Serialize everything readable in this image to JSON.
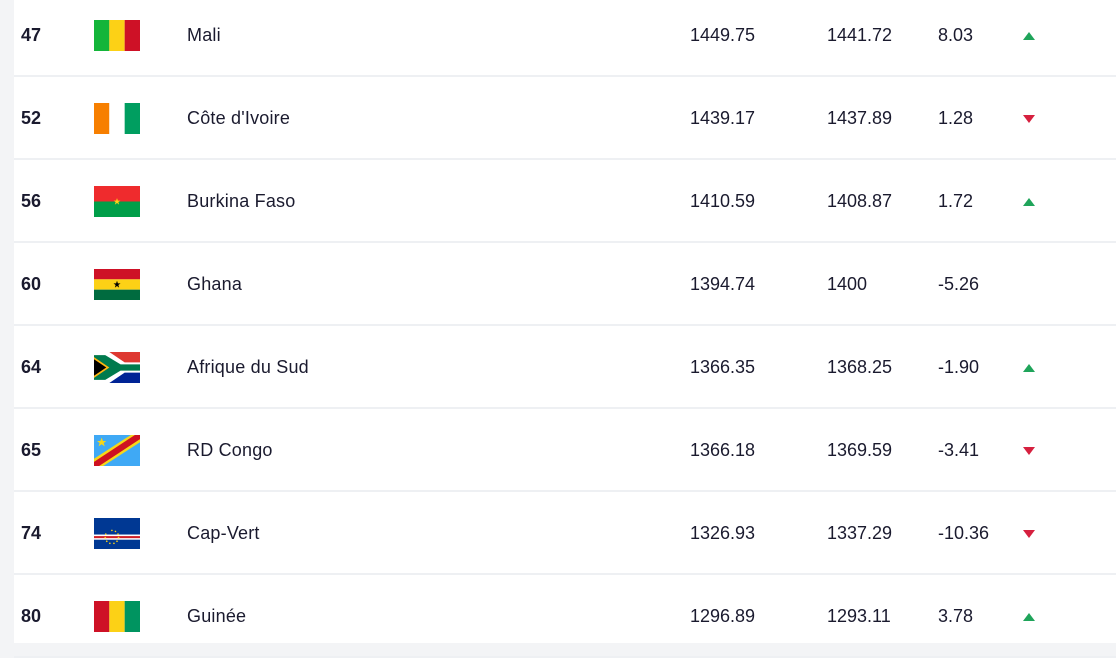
{
  "ranking": {
    "rows": [
      {
        "rank": "47",
        "country": "Mali",
        "flag": "mali-flag",
        "points": "1449.75",
        "previous_points": "1441.72",
        "change": "8.03",
        "trend": "up"
      },
      {
        "rank": "52",
        "country": "Côte d'Ivoire",
        "flag": "cote-divoire-flag",
        "points": "1439.17",
        "previous_points": "1437.89",
        "change": "1.28",
        "trend": "down"
      },
      {
        "rank": "56",
        "country": "Burkina Faso",
        "flag": "burkina-faso-flag",
        "points": "1410.59",
        "previous_points": "1408.87",
        "change": "1.72",
        "trend": "up"
      },
      {
        "rank": "60",
        "country": "Ghana",
        "flag": "ghana-flag",
        "points": "1394.74",
        "previous_points": "1400",
        "change": "-5.26",
        "trend": "none"
      },
      {
        "rank": "64",
        "country": "Afrique du Sud",
        "flag": "south-africa-flag",
        "points": "1366.35",
        "previous_points": "1368.25",
        "change": "-1.90",
        "trend": "up"
      },
      {
        "rank": "65",
        "country": "RD Congo",
        "flag": "dr-congo-flag",
        "points": "1366.18",
        "previous_points": "1369.59",
        "change": "-3.41",
        "trend": "down"
      },
      {
        "rank": "74",
        "country": "Cap-Vert",
        "flag": "cape-verde-flag",
        "points": "1326.93",
        "previous_points": "1337.29",
        "change": "-10.36",
        "trend": "down"
      },
      {
        "rank": "80",
        "country": "Guinée",
        "flag": "guinea-flag",
        "points": "1296.89",
        "previous_points": "1293.11",
        "change": "3.78",
        "trend": "up"
      }
    ]
  },
  "colors": {
    "up": "#1fa45a",
    "down": "#d6203f",
    "text": "#1a1a2e",
    "divider": "#eef0f3"
  }
}
